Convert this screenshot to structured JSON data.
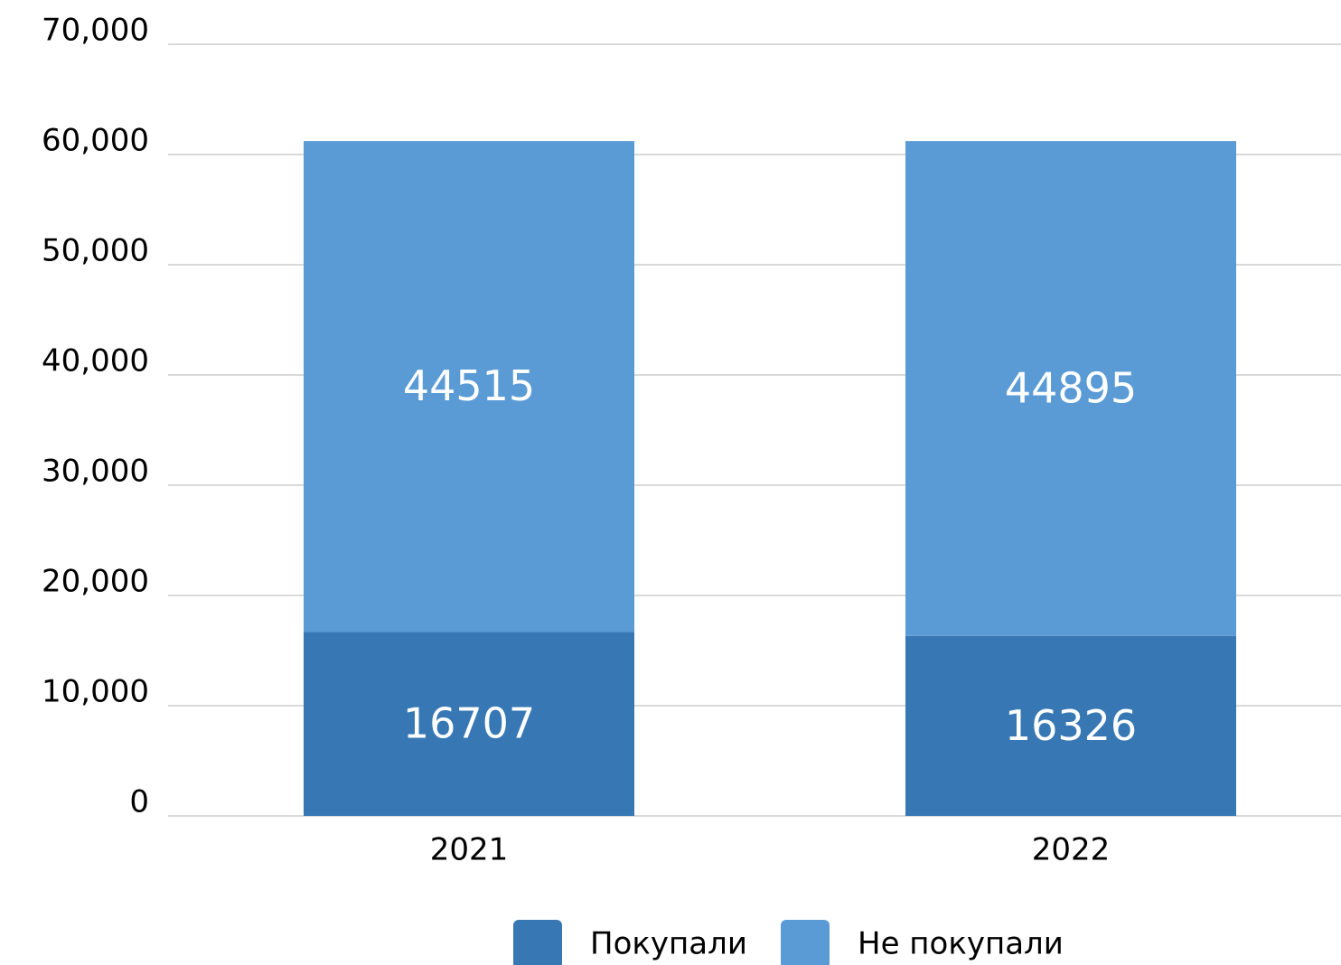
{
  "chart_data": {
    "type": "stacked_bar",
    "categories": [
      "2021",
      "2022"
    ],
    "series": [
      {
        "name": "Покупали",
        "color": "#3778b4",
        "values": [
          16707,
          16326
        ]
      },
      {
        "name": "Не покупали",
        "color": "#5b9bd5",
        "values": [
          44515,
          44895
        ]
      }
    ],
    "ylim": [
      0,
      70000
    ],
    "yticks": [
      0,
      {
        "value": 10000,
        "label": "10,000"
      },
      {
        "value": 20000,
        "label": "20,000"
      },
      {
        "value": 30000,
        "label": "30,000"
      },
      {
        "value": 40000,
        "label": "40,000"
      },
      {
        "value": 50000,
        "label": "50,000"
      },
      {
        "value": 60000,
        "label": "60,000"
      },
      {
        "value": 70000,
        "label": "70,000"
      }
    ],
    "grid": true,
    "legend": "bottom"
  }
}
